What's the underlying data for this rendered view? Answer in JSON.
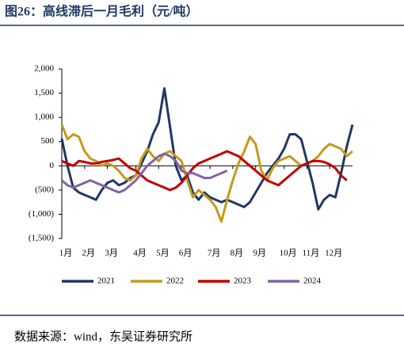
{
  "chart_data": {
    "type": "line",
    "title": "图26：高线滞后一月毛利（元/吨）",
    "source": "数据来源：wind，东吴证券研究所",
    "categories": [
      "1月",
      null,
      null,
      null,
      "2月",
      null,
      null,
      null,
      "3月",
      null,
      null,
      null,
      null,
      "4月",
      null,
      null,
      null,
      "5月",
      null,
      null,
      null,
      "6月",
      null,
      null,
      null,
      null,
      "7月",
      null,
      null,
      null,
      "8月",
      null,
      null,
      null,
      "9月",
      null,
      null,
      null,
      null,
      "10月",
      null,
      null,
      null,
      "11月",
      null,
      null,
      null,
      "12月",
      null,
      null,
      null,
      null
    ],
    "series": [
      {
        "name": "2021",
        "color": "#1f3864",
        "values": [
          560,
          0,
          -450,
          -550,
          -600,
          -650,
          -700,
          -500,
          -350,
          -300,
          -400,
          -350,
          -250,
          -200,
          50,
          300,
          650,
          900,
          1600,
          800,
          0,
          -300,
          -200,
          -550,
          -700,
          -550,
          -650,
          -700,
          -750,
          -700,
          -750,
          -800,
          -850,
          -750,
          -550,
          -350,
          -150,
          0,
          150,
          350,
          650,
          650,
          550,
          100,
          -350,
          -900,
          -700,
          -600,
          -650,
          -150,
          400,
          850
        ]
      },
      {
        "name": "2022",
        "color": "#c49a1c",
        "values": [
          850,
          550,
          650,
          600,
          300,
          150,
          100,
          0,
          50,
          0,
          -100,
          -250,
          -300,
          -200,
          150,
          350,
          200,
          100,
          250,
          300,
          200,
          100,
          -300,
          -650,
          -500,
          -600,
          -700,
          -850,
          -1150,
          -700,
          -300,
          50,
          300,
          600,
          450,
          -100,
          -300,
          -50,
          100,
          150,
          200,
          100,
          0,
          50,
          100,
          200,
          350,
          450,
          400,
          350,
          200,
          300
        ]
      },
      {
        "name": "2023",
        "color": "#c00000",
        "values": [
          100,
          50,
          0,
          100,
          80,
          50,
          50,
          80,
          100,
          120,
          150,
          50,
          -50,
          -100,
          -200,
          -300,
          -350,
          -400,
          -450,
          -500,
          -450,
          -350,
          -200,
          -50,
          50,
          100,
          150,
          200,
          250,
          300,
          250,
          200,
          100,
          0,
          -100,
          -200,
          -300,
          -350,
          -400,
          -300,
          -200,
          -100,
          0,
          50,
          100,
          100,
          80,
          30,
          -50,
          -200,
          -300,
          null
        ]
      },
      {
        "name": "2024",
        "color": "#8064a2",
        "values": [
          -300,
          -400,
          -450,
          -400,
          -350,
          -300,
          -350,
          -400,
          -450,
          -500,
          -550,
          -500,
          -400,
          -300,
          -150,
          0,
          100,
          200,
          250,
          200,
          100,
          -100,
          -150,
          -150,
          -200,
          -250,
          -250,
          -200,
          -150,
          -100,
          null,
          null,
          null,
          null,
          null,
          null,
          null,
          null,
          null,
          null,
          null,
          null,
          null,
          null,
          null,
          null,
          null,
          null,
          null,
          null,
          null,
          null
        ]
      }
    ],
    "ylim": [
      -1500,
      2000
    ],
    "yticks": [
      {
        "value": -1500,
        "label": "(1,500)"
      },
      {
        "value": -1000,
        "label": "(1,000)"
      },
      {
        "value": -500,
        "label": "(500)"
      },
      0,
      500,
      {
        "value": 1000,
        "label": "1,000"
      },
      {
        "value": 1500,
        "label": "1,500"
      },
      {
        "value": 2000,
        "label": "2,000"
      }
    ],
    "grid": false
  }
}
